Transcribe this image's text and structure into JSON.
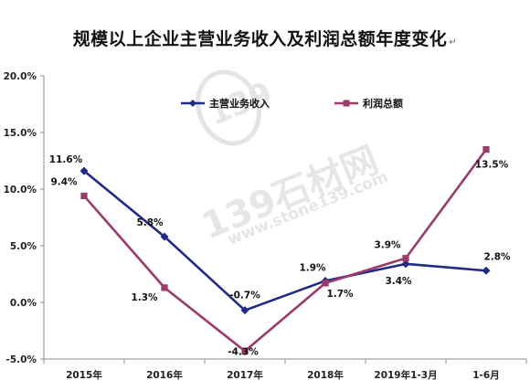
{
  "title": "规模以上企业主营业务收入及利润总额年度变化",
  "title_return_mark": "↵",
  "watermark": {
    "brand": "139石材网",
    "domain": "www.stone139.com",
    "logo_digits": "139"
  },
  "colors": {
    "revenue": "#1f2a8a",
    "profit": "#9b3a6b",
    "axis": "#8c8c8c"
  },
  "chart_data": {
    "type": "line",
    "title": "规模以上企业主营业务收入及利润总额年度变化",
    "categories": [
      "2015年",
      "2016年",
      "2017年",
      "2018年",
      "2019年1-3月",
      "1-6月"
    ],
    "ylim": [
      -5.0,
      20.0
    ],
    "yticks": [
      -5.0,
      0.0,
      5.0,
      10.0,
      15.0,
      20.0
    ],
    "ytick_labels": [
      "-5.0%",
      "0.0%",
      "5.0%",
      "10.0%",
      "15.0%",
      "20.0%"
    ],
    "grid": false,
    "legend_position": "top",
    "series": [
      {
        "name": "主营业务收入",
        "values": [
          11.6,
          5.8,
          -0.7,
          1.9,
          3.4,
          2.8
        ],
        "labels": [
          "11.6%",
          "5.8%",
          "-0.7%",
          "1.9%",
          "3.4%",
          "2.8%"
        ],
        "marker": "diamond",
        "color": "#1f2a8a"
      },
      {
        "name": "利润总额",
        "values": [
          9.4,
          1.3,
          -4.3,
          1.7,
          3.9,
          13.5
        ],
        "labels": [
          "9.4%",
          "1.3%",
          "-4.3%",
          "1.7%",
          "3.9%",
          "13.5%"
        ],
        "marker": "square",
        "color": "#9b3a6b"
      }
    ]
  }
}
